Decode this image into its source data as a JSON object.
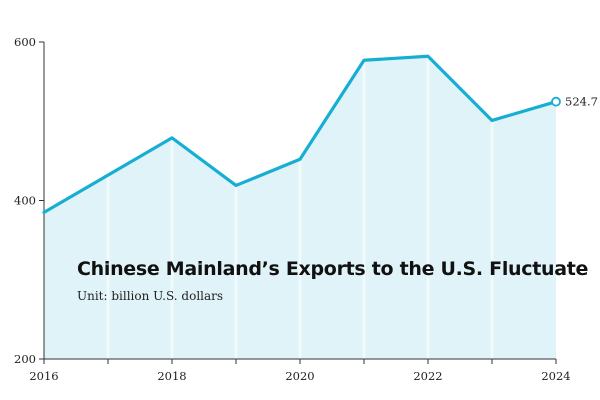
{
  "colors": {
    "line": "#16aed3",
    "area": "#dff3f9",
    "axis": "#333333",
    "highlight": "#ffffff"
  },
  "chart_data": {
    "type": "area",
    "title": "Chinese Mainland’s Exports to the U.S. Fluctuate",
    "subtitle": "Unit: billion U.S. dollars",
    "xlabel": "",
    "ylabel": "",
    "x": [
      2016,
      2017,
      2018,
      2019,
      2020,
      2021,
      2022,
      2023,
      2024
    ],
    "x_ticks": [
      "2016",
      "2018",
      "2020",
      "2022",
      "2024"
    ],
    "y_ticks": [
      "600",
      "400",
      "200"
    ],
    "ylim": [
      200,
      600
    ],
    "series": [
      {
        "values": [
          385.0,
          432.0,
          479.0,
          419.0,
          452.0,
          577.0,
          582.0,
          501.0,
          524.7
        ]
      }
    ],
    "end_label": "524.7",
    "grid": false,
    "legend": "none"
  }
}
